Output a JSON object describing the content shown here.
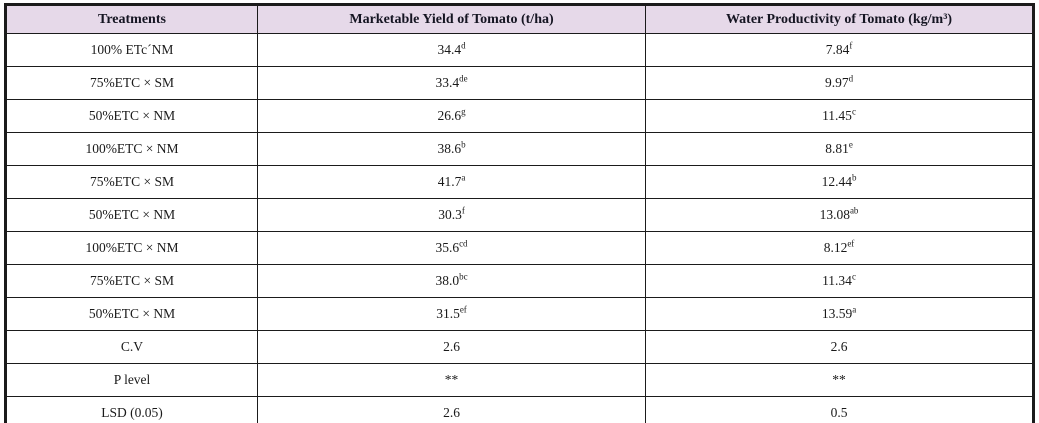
{
  "table": {
    "columns": [
      "Treatments",
      "Marketable Yield of Tomato (t/ha)",
      "Water Productivity of Tomato (kg/m³)"
    ],
    "rows": [
      {
        "treatment": "100% ETc´NM",
        "yield": "34.4",
        "yield_sup": "d",
        "wp": "7.84",
        "wp_sup": "f"
      },
      {
        "treatment": "75%ETC × SM",
        "yield": "33.4",
        "yield_sup": "de",
        "wp": "9.97",
        "wp_sup": "d"
      },
      {
        "treatment": "50%ETC × NM",
        "yield": "26.6",
        "yield_sup": "g",
        "wp": "11.45",
        "wp_sup": "c"
      },
      {
        "treatment": "100%ETC × NM",
        "yield": "38.6",
        "yield_sup": "b",
        "wp": "8.81",
        "wp_sup": "e"
      },
      {
        "treatment": "75%ETC × SM",
        "yield": "41.7",
        "yield_sup": "a",
        "wp": "12.44",
        "wp_sup": "b"
      },
      {
        "treatment": "50%ETC × NM",
        "yield": "30.3",
        "yield_sup": "f",
        "wp": "13.08",
        "wp_sup": "ab"
      },
      {
        "treatment": "100%ETC × NM",
        "yield": "35.6",
        "yield_sup": "cd",
        "wp": "8.12",
        "wp_sup": "ef"
      },
      {
        "treatment": "75%ETC × SM",
        "yield": "38.0",
        "yield_sup": "bc",
        "wp": "11.34",
        "wp_sup": "c"
      },
      {
        "treatment": "50%ETC × NM",
        "yield": "31.5",
        "yield_sup": "ef",
        "wp": "13.59",
        "wp_sup": "a"
      },
      {
        "treatment": "C.V",
        "yield": "2.6",
        "yield_sup": "",
        "wp": "2.6",
        "wp_sup": ""
      },
      {
        "treatment": "P level",
        "yield": "**",
        "yield_sup": "",
        "wp": "**",
        "wp_sup": ""
      },
      {
        "treatment": "LSD (0.05)",
        "yield": "2.6",
        "yield_sup": "",
        "wp": "0.5",
        "wp_sup": ""
      }
    ],
    "colors": {
      "header_background": "#e6d9e9",
      "border": "#1b1b1b",
      "text": "#1a1a1a"
    }
  }
}
